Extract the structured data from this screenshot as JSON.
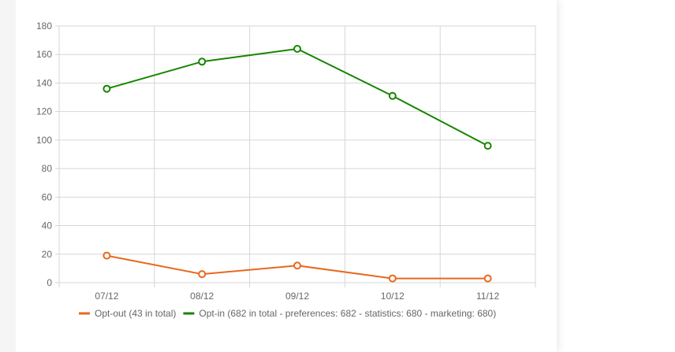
{
  "chart_data": {
    "type": "line",
    "categories": [
      "07/12",
      "08/12",
      "09/12",
      "10/12",
      "11/12"
    ],
    "ylim": [
      0,
      180
    ],
    "yticks": [
      0,
      20,
      40,
      60,
      80,
      100,
      120,
      140,
      160,
      180
    ],
    "grid": true,
    "legend_position": "bottom",
    "series": [
      {
        "name": "Opt-out (43 in total)",
        "color": "#e8681e",
        "values": [
          19,
          6,
          12,
          3,
          3
        ]
      },
      {
        "name": "Opt-in (682 in total - preferences: 682 - statistics: 680 - marketing: 680)",
        "color": "#178500",
        "values": [
          136,
          155,
          164,
          131,
          96
        ]
      }
    ]
  }
}
